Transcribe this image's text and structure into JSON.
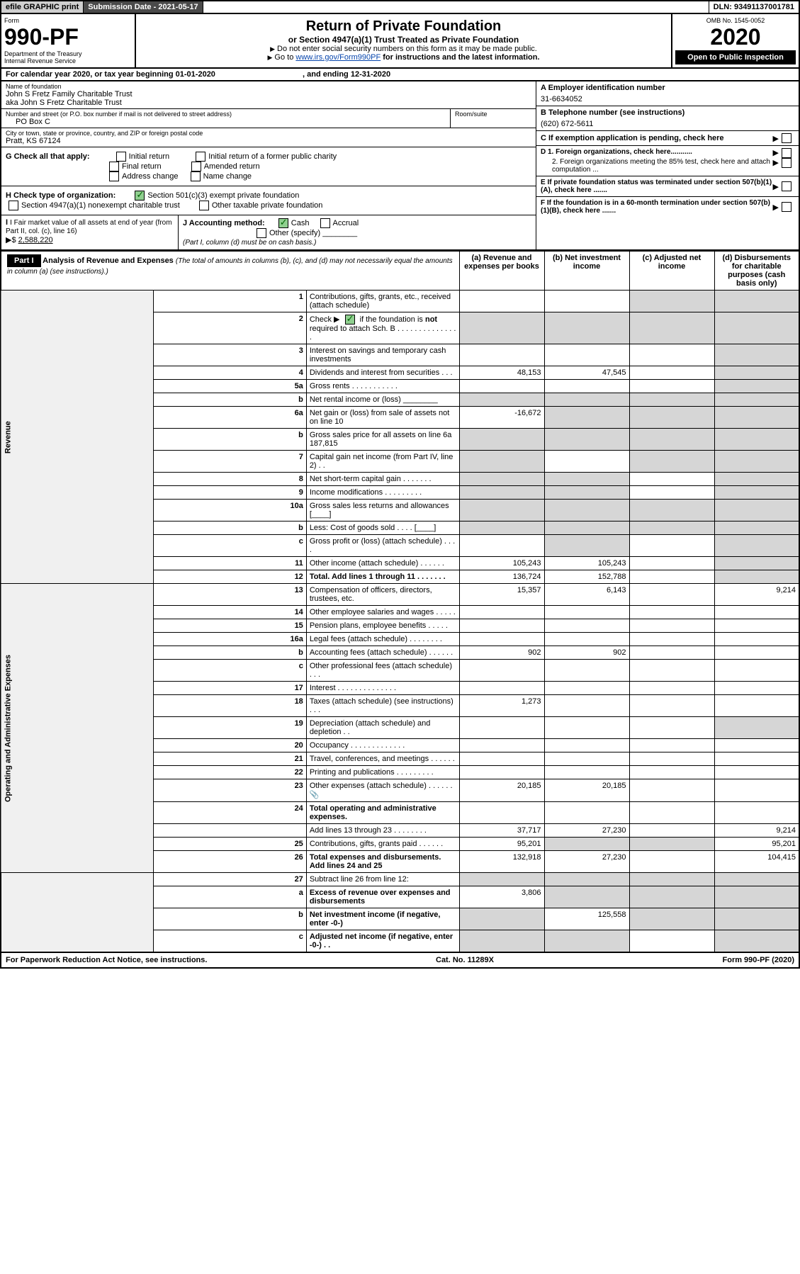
{
  "topbar": {
    "efile": "efile GRAPHIC print",
    "subdate_label": "Submission Date - ",
    "subdate": "2021-05-17",
    "dln_label": "DLN: ",
    "dln": "93491137001781"
  },
  "header": {
    "form_label": "Form",
    "form_no": "990-PF",
    "dept": "Department of the Treasury",
    "irs": "Internal Revenue Service",
    "title": "Return of Private Foundation",
    "subtitle": "or Section 4947(a)(1) Trust Treated as Private Foundation",
    "instr1": "Do not enter social security numbers on this form as it may be made public.",
    "instr2_pre": "Go to ",
    "instr2_link": "www.irs.gov/Form990PF",
    "instr2_post": " for instructions and the latest information.",
    "omb": "OMB No. 1545-0052",
    "year": "2020",
    "open_public": "Open to Public Inspection"
  },
  "cal": {
    "text_pre": "For calendar year 2020, or tax year beginning ",
    "begin": "01-01-2020",
    "text_mid": " , and ending ",
    "end": "12-31-2020"
  },
  "foundation": {
    "name_label": "Name of foundation",
    "name1": "John S Fretz Family Charitable Trust",
    "name2": "aka John S Fretz Charitable Trust",
    "address_label": "Number and street (or P.O. box number if mail is not delivered to street address)",
    "address": "PO Box C",
    "room_label": "Room/suite",
    "city_label": "City or town, state or province, country, and ZIP or foreign postal code",
    "city": "Pratt, KS  67124"
  },
  "right_info": {
    "a_label": "A Employer identification number",
    "ein": "31-6634052",
    "b_label": "B Telephone number (see instructions)",
    "phone": "(620) 672-5611",
    "c_label": "C If exemption application is pending, check here",
    "d1": "D 1. Foreign organizations, check here...........",
    "d2": "2. Foreign organizations meeting the 85% test, check here and attach computation ...",
    "e": "E  If private foundation status was terminated under section 507(b)(1)(A), check here .......",
    "f": "F  If the foundation is in a 60-month termination under section 507(b)(1)(B), check here .......",
    "arrow": "▶"
  },
  "g": {
    "label": "G Check all that apply:",
    "initial": "Initial return",
    "initial_former": "Initial return of a former public charity",
    "final": "Final return",
    "amended": "Amended return",
    "addr_change": "Address change",
    "name_change": "Name change"
  },
  "h": {
    "label": "H Check type of organization:",
    "c3": "Section 501(c)(3) exempt private foundation",
    "nonexempt": "Section 4947(a)(1) nonexempt charitable trust",
    "other_taxable": "Other taxable private foundation"
  },
  "i": {
    "label": "I Fair market value of all assets at end of year (from Part II, col. (c), line 16)",
    "arrow": "▶$",
    "value": "2,588,220"
  },
  "j": {
    "label": "J Accounting method:",
    "cash": "Cash",
    "accrual": "Accrual",
    "other": "Other (specify)",
    "note": "(Part I, column (d) must be on cash basis.)"
  },
  "part1": {
    "label": "Part I",
    "title": "Analysis of Revenue and Expenses",
    "title_note": "(The total of amounts in columns (b), (c), and (d) may not necessarily equal the amounts in column (a) (see instructions).)",
    "col_a": "(a)   Revenue and expenses per books",
    "col_b": "(b)   Net investment income",
    "col_c": "(c)   Adjusted net income",
    "col_d": "(d)   Disbursements for charitable purposes (cash basis only)"
  },
  "side_labels": {
    "revenue": "Revenue",
    "expenses": "Operating and Administrative Expenses"
  },
  "rows": [
    {
      "no": "1",
      "desc": "Contributions, gifts, grants, etc., received (attach schedule)",
      "a": "",
      "b": "",
      "c": "",
      "d": "",
      "c_shade": true,
      "d_shade": true
    },
    {
      "no": "2",
      "desc": "Check ▶ ☑ if the foundation is not required to attach Sch. B   .  .  .  .  .  .  .  .  .  .  .  .  .  .  .",
      "a": "",
      "b": "",
      "c": "",
      "d": "",
      "a_shade": true,
      "b_shade": true,
      "c_shade": true,
      "d_shade": true,
      "has_check": true
    },
    {
      "no": "3",
      "desc": "Interest on savings and temporary cash investments",
      "a": "",
      "b": "",
      "c": "",
      "d": "",
      "d_shade": true
    },
    {
      "no": "4",
      "desc": "Dividends and interest from securities   .   .   .",
      "a": "48,153",
      "b": "47,545",
      "c": "",
      "d": "",
      "d_shade": true
    },
    {
      "no": "5a",
      "desc": "Gross rents   .   .   .   .   .   .   .   .   .   .   .",
      "a": "",
      "b": "",
      "c": "",
      "d": "",
      "d_shade": true
    },
    {
      "no": "b",
      "desc": "Net rental income or (loss)  ________",
      "a": "",
      "b": "",
      "c": "",
      "d": "",
      "a_shade": true,
      "b_shade": true,
      "c_shade": true,
      "d_shade": true
    },
    {
      "no": "6a",
      "desc": "Net gain or (loss) from sale of assets not on line 10",
      "a": "-16,672",
      "b": "",
      "c": "",
      "d": "",
      "b_shade": true,
      "c_shade": true,
      "d_shade": true
    },
    {
      "no": "b",
      "desc": "Gross sales price for all assets on line 6a            187,815",
      "a": "",
      "b": "",
      "c": "",
      "d": "",
      "a_shade": true,
      "b_shade": true,
      "c_shade": true,
      "d_shade": true
    },
    {
      "no": "7",
      "desc": "Capital gain net income (from Part IV, line 2)   .   .",
      "a": "",
      "b": "",
      "c": "",
      "d": "",
      "a_shade": true,
      "c_shade": true,
      "d_shade": true
    },
    {
      "no": "8",
      "desc": "Net short-term capital gain   .   .   .   .   .   .   .",
      "a": "",
      "b": "",
      "c": "",
      "d": "",
      "a_shade": true,
      "b_shade": true,
      "d_shade": true
    },
    {
      "no": "9",
      "desc": "Income modifications   .   .   .   .   .   .   .   .   .",
      "a": "",
      "b": "",
      "c": "",
      "d": "",
      "a_shade": true,
      "b_shade": true,
      "d_shade": true
    },
    {
      "no": "10a",
      "desc": "Gross sales less returns and allowances  [____]",
      "a": "",
      "b": "",
      "c": "",
      "d": "",
      "a_shade": true,
      "b_shade": true,
      "c_shade": true,
      "d_shade": true
    },
    {
      "no": "b",
      "desc": "Less: Cost of goods sold   .   .   .   .   [____]",
      "a": "",
      "b": "",
      "c": "",
      "d": "",
      "a_shade": true,
      "b_shade": true,
      "c_shade": true,
      "d_shade": true
    },
    {
      "no": "c",
      "desc": "Gross profit or (loss) (attach schedule)   .   .   .   .",
      "a": "",
      "b": "",
      "c": "",
      "d": "",
      "b_shade": true,
      "d_shade": true
    },
    {
      "no": "11",
      "desc": "Other income (attach schedule)   .   .   .   .   .   .",
      "a": "105,243",
      "b": "105,243",
      "c": "",
      "d": "",
      "d_shade": true
    },
    {
      "no": "12",
      "desc": "Total. Add lines 1 through 11   .   .   .   .   .   .   .",
      "a": "136,724",
      "b": "152,788",
      "c": "",
      "d": "",
      "bold": true,
      "d_shade": true
    }
  ],
  "exp_rows": [
    {
      "no": "13",
      "desc": "Compensation of officers, directors, trustees, etc.",
      "a": "15,357",
      "b": "6,143",
      "c": "",
      "d": "9,214"
    },
    {
      "no": "14",
      "desc": "Other employee salaries and wages   .   .   .   .   .",
      "a": "",
      "b": "",
      "c": "",
      "d": ""
    },
    {
      "no": "15",
      "desc": "Pension plans, employee benefits   .   .   .   .   .",
      "a": "",
      "b": "",
      "c": "",
      "d": ""
    },
    {
      "no": "16a",
      "desc": "Legal fees (attach schedule) .   .   .   .   .   .   .   .",
      "a": "",
      "b": "",
      "c": "",
      "d": ""
    },
    {
      "no": "b",
      "desc": "Accounting fees (attach schedule) .   .   .   .   .   .",
      "a": "902",
      "b": "902",
      "c": "",
      "d": ""
    },
    {
      "no": "c",
      "desc": "Other professional fees (attach schedule)   .   .   .",
      "a": "",
      "b": "",
      "c": "",
      "d": ""
    },
    {
      "no": "17",
      "desc": "Interest .   .   .   .   .   .   .   .   .   .   .   .   .   .",
      "a": "",
      "b": "",
      "c": "",
      "d": ""
    },
    {
      "no": "18",
      "desc": "Taxes (attach schedule) (see instructions)   .   .   .",
      "a": "1,273",
      "b": "",
      "c": "",
      "d": ""
    },
    {
      "no": "19",
      "desc": "Depreciation (attach schedule) and depletion   .   .",
      "a": "",
      "b": "",
      "c": "",
      "d": "",
      "d_shade": true
    },
    {
      "no": "20",
      "desc": "Occupancy .   .   .   .   .   .   .   .   .   .   .   .   .",
      "a": "",
      "b": "",
      "c": "",
      "d": ""
    },
    {
      "no": "21",
      "desc": "Travel, conferences, and meetings .   .   .   .   .   .",
      "a": "",
      "b": "",
      "c": "",
      "d": ""
    },
    {
      "no": "22",
      "desc": "Printing and publications .   .   .   .   .   .   .   .   .",
      "a": "",
      "b": "",
      "c": "",
      "d": ""
    },
    {
      "no": "23",
      "desc": "Other expenses (attach schedule) .   .   .   .   .   .",
      "a": "20,185",
      "b": "20,185",
      "c": "",
      "d": "",
      "icon": "📎"
    },
    {
      "no": "24",
      "desc": "Total operating and administrative expenses.",
      "a": "",
      "b": "",
      "c": "",
      "d": "",
      "bold": true
    },
    {
      "no": "",
      "desc": "Add lines 13 through 23   .   .   .   .   .   .   .   .",
      "a": "37,717",
      "b": "27,230",
      "c": "",
      "d": "9,214"
    },
    {
      "no": "25",
      "desc": "Contributions, gifts, grants paid   .   .   .   .   .   .",
      "a": "95,201",
      "b": "",
      "c": "",
      "d": "95,201",
      "b_shade": true,
      "c_shade": true
    },
    {
      "no": "26",
      "desc": "Total expenses and disbursements. Add lines 24 and 25",
      "a": "132,918",
      "b": "27,230",
      "c": "",
      "d": "104,415",
      "bold": true
    }
  ],
  "net_rows": [
    {
      "no": "27",
      "desc": "Subtract line 26 from line 12:",
      "a": "",
      "b": "",
      "c": "",
      "d": "",
      "a_shade": true,
      "b_shade": true,
      "c_shade": true,
      "d_shade": true
    },
    {
      "no": "a",
      "desc": "Excess of revenue over expenses and disbursements",
      "a": "3,806",
      "b": "",
      "c": "",
      "d": "",
      "bold": true,
      "b_shade": true,
      "c_shade": true,
      "d_shade": true
    },
    {
      "no": "b",
      "desc": "Net investment income (if negative, enter -0-)",
      "a": "",
      "b": "125,558",
      "c": "",
      "d": "",
      "bold": true,
      "a_shade": true,
      "c_shade": true,
      "d_shade": true
    },
    {
      "no": "c",
      "desc": "Adjusted net income (if negative, enter -0-)   .   .",
      "a": "",
      "b": "",
      "c": "",
      "d": "",
      "bold": true,
      "a_shade": true,
      "b_shade": true,
      "d_shade": true
    }
  ],
  "footer": {
    "left": "For Paperwork Reduction Act Notice, see instructions.",
    "mid": "Cat. No. 11289X",
    "right": "Form 990-PF (2020)"
  },
  "style": {
    "shade_color": "#d6d6d6",
    "link_color": "#0645ad",
    "check_color": "#8fcf8f"
  }
}
